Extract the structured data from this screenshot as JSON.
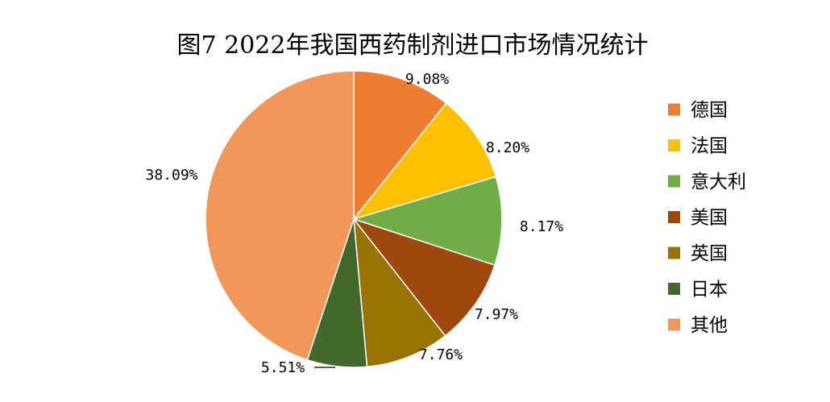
{
  "chart_data": {
    "type": "pie",
    "title": "图7 2022年我国西药制剂进口市场情况统计",
    "start_angle_deg": 0,
    "direction": "clockwise",
    "slices": [
      {
        "label": "德国",
        "value": 9.08,
        "display": "9.08%",
        "color": "#ED7D31"
      },
      {
        "label": "法国",
        "value": 8.2,
        "display": "8.20%",
        "color": "#FFC000"
      },
      {
        "label": "意大利",
        "value": 8.17,
        "display": "8.17%",
        "color": "#70AD47"
      },
      {
        "label": "美国",
        "value": 7.97,
        "display": "7.97%",
        "color": "#9E480E"
      },
      {
        "label": "英国",
        "value": 7.76,
        "display": "7.76%",
        "color": "#997300"
      },
      {
        "label": "日本",
        "value": 5.51,
        "display": "5.51%",
        "color": "#43682B"
      },
      {
        "label": "其他",
        "value": 38.09,
        "display": "38.09%",
        "color": "#F1975A"
      }
    ],
    "legend": {
      "position": "right"
    }
  }
}
